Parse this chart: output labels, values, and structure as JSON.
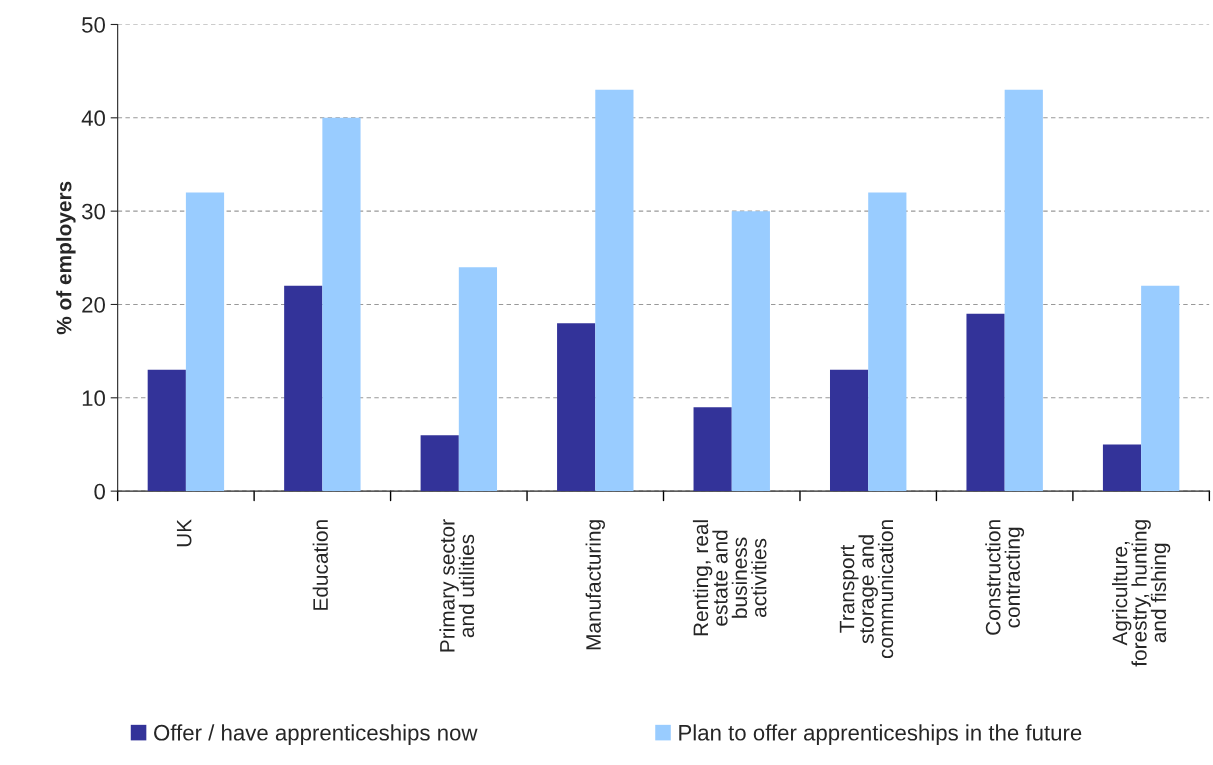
{
  "chart_data": {
    "type": "bar",
    "ylabel": "% of employers",
    "categories": [
      "UK",
      "Education",
      "Primary sector\nand utilities",
      "Manufacturing",
      "Renting, real\nestate and\nbusiness\nactivities",
      "Transport\nstorage and\ncommunication",
      "Construction\ncontracting",
      "Agriculture,\nforestry, hunting\nand fishing"
    ],
    "series": [
      {
        "name": "Offer / have apprenticeships now",
        "color": "#333399",
        "values": [
          13,
          22,
          6,
          18,
          9,
          13,
          19,
          5
        ]
      },
      {
        "name": "Plan to offer apprenticeships in the future",
        "color": "#99ccff",
        "values": [
          32,
          40,
          24,
          43,
          30,
          32,
          43,
          22
        ]
      }
    ],
    "ylim": [
      0,
      50
    ],
    "yticks": [
      0,
      10,
      20,
      30,
      40,
      50
    ],
    "grid": "y",
    "legend": "bottom"
  }
}
